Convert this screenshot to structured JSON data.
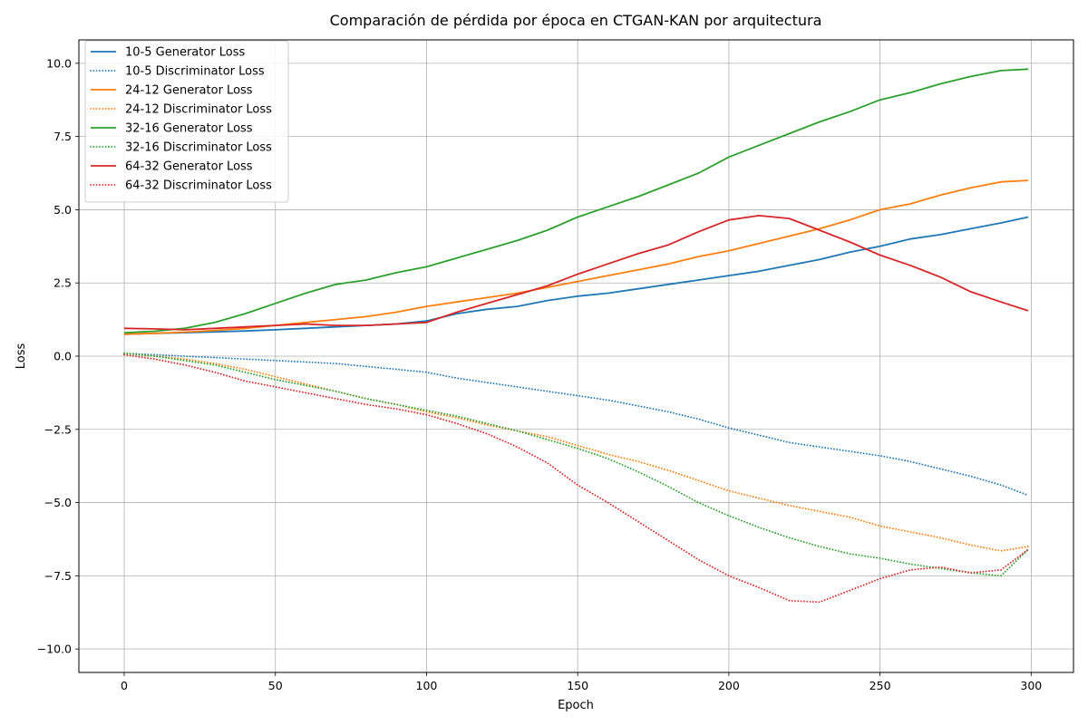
{
  "chart_data": {
    "type": "line",
    "title": "Comparación de pérdida por época en CTGAN-KAN por arquitectura",
    "xlabel": "Epoch",
    "ylabel": "Loss",
    "xlim": [
      -15,
      314
    ],
    "ylim": [
      -10.8,
      10.8
    ],
    "xticks": [
      0,
      50,
      100,
      150,
      200,
      250,
      300
    ],
    "yticks": [
      -10.0,
      -7.5,
      -5.0,
      -2.5,
      0.0,
      2.5,
      5.0,
      7.5,
      10.0
    ],
    "ytick_labels": [
      "−10.0",
      "−7.5",
      "−5.0",
      "−2.5",
      "0.0",
      "2.5",
      "5.0",
      "7.5",
      "10.0"
    ],
    "grid": true,
    "legend_position": "top-left",
    "x": [
      0,
      10,
      20,
      30,
      40,
      50,
      60,
      70,
      80,
      90,
      100,
      110,
      120,
      130,
      140,
      150,
      160,
      170,
      180,
      190,
      200,
      210,
      220,
      230,
      240,
      250,
      260,
      270,
      280,
      290,
      299
    ],
    "series": [
      {
        "name": "10-5 Generator Loss",
        "color": "#1f77b4",
        "style": "solid",
        "values": [
          0.75,
          0.78,
          0.8,
          0.83,
          0.86,
          0.9,
          0.95,
          1.0,
          1.05,
          1.1,
          1.2,
          1.45,
          1.6,
          1.7,
          1.9,
          2.05,
          2.15,
          2.3,
          2.45,
          2.6,
          2.75,
          2.9,
          3.1,
          3.3,
          3.55,
          3.75,
          4.0,
          4.15,
          4.35,
          4.55,
          4.75
        ]
      },
      {
        "name": "10-5 Discriminator Loss",
        "color": "#1f77b4",
        "style": "dotted",
        "values": [
          0.1,
          0.05,
          0.0,
          -0.05,
          -0.1,
          -0.15,
          -0.2,
          -0.25,
          -0.35,
          -0.45,
          -0.55,
          -0.75,
          -0.9,
          -1.05,
          -1.2,
          -1.35,
          -1.5,
          -1.7,
          -1.9,
          -2.15,
          -2.45,
          -2.7,
          -2.95,
          -3.1,
          -3.25,
          -3.4,
          -3.6,
          -3.85,
          -4.1,
          -4.4,
          -4.75
        ]
      },
      {
        "name": "24-12 Generator Loss",
        "color": "#ff7f0e",
        "style": "solid",
        "values": [
          0.75,
          0.78,
          0.82,
          0.88,
          0.95,
          1.05,
          1.15,
          1.25,
          1.35,
          1.5,
          1.7,
          1.85,
          2.0,
          2.15,
          2.35,
          2.55,
          2.75,
          2.95,
          3.15,
          3.4,
          3.6,
          3.85,
          4.1,
          4.35,
          4.65,
          5.0,
          5.2,
          5.5,
          5.75,
          5.95,
          6.0
        ]
      },
      {
        "name": "24-12 Discriminator Loss",
        "color": "#ff7f0e",
        "style": "dotted",
        "values": [
          0.1,
          0.0,
          -0.1,
          -0.25,
          -0.45,
          -0.7,
          -0.95,
          -1.2,
          -1.45,
          -1.65,
          -1.9,
          -2.1,
          -2.35,
          -2.55,
          -2.75,
          -3.05,
          -3.35,
          -3.6,
          -3.9,
          -4.25,
          -4.6,
          -4.85,
          -5.1,
          -5.3,
          -5.5,
          -5.8,
          -6.0,
          -6.2,
          -6.45,
          -6.65,
          -6.5
        ]
      },
      {
        "name": "32-16 Generator Loss",
        "color": "#2ca02c",
        "style": "solid",
        "values": [
          0.8,
          0.85,
          0.95,
          1.15,
          1.45,
          1.8,
          2.15,
          2.45,
          2.6,
          2.85,
          3.05,
          3.35,
          3.65,
          3.95,
          4.3,
          4.75,
          5.1,
          5.45,
          5.85,
          6.25,
          6.8,
          7.2,
          7.6,
          8.0,
          8.35,
          8.75,
          9.0,
          9.3,
          9.55,
          9.75,
          9.8
        ]
      },
      {
        "name": "32-16 Discriminator Loss",
        "color": "#2ca02c",
        "style": "dotted",
        "values": [
          0.1,
          0.0,
          -0.15,
          -0.3,
          -0.55,
          -0.8,
          -1.0,
          -1.2,
          -1.45,
          -1.65,
          -1.85,
          -2.05,
          -2.3,
          -2.55,
          -2.85,
          -3.15,
          -3.5,
          -3.95,
          -4.45,
          -5.0,
          -5.45,
          -5.85,
          -6.2,
          -6.5,
          -6.75,
          -6.9,
          -7.1,
          -7.25,
          -7.4,
          -7.5,
          -6.6
        ]
      },
      {
        "name": "64-32 Generator Loss",
        "color": "#d62728",
        "style": "solid",
        "values": [
          0.95,
          0.93,
          0.9,
          0.95,
          1.0,
          1.05,
          1.1,
          1.05,
          1.05,
          1.1,
          1.15,
          1.5,
          1.8,
          2.1,
          2.4,
          2.8,
          3.15,
          3.5,
          3.8,
          4.25,
          4.65,
          4.8,
          4.7,
          4.3,
          3.9,
          3.45,
          3.1,
          2.7,
          2.2,
          1.85,
          1.55
        ]
      },
      {
        "name": "64-32 Discriminator Loss",
        "color": "#d62728",
        "style": "dotted",
        "values": [
          0.05,
          -0.1,
          -0.3,
          -0.55,
          -0.85,
          -1.05,
          -1.25,
          -1.45,
          -1.65,
          -1.8,
          -2.0,
          -2.3,
          -2.65,
          -3.1,
          -3.65,
          -4.4,
          -5.0,
          -5.65,
          -6.3,
          -6.95,
          -7.5,
          -7.9,
          -8.35,
          -8.4,
          -8.0,
          -7.6,
          -7.3,
          -7.2,
          -7.4,
          -7.3,
          -6.6
        ]
      }
    ]
  }
}
